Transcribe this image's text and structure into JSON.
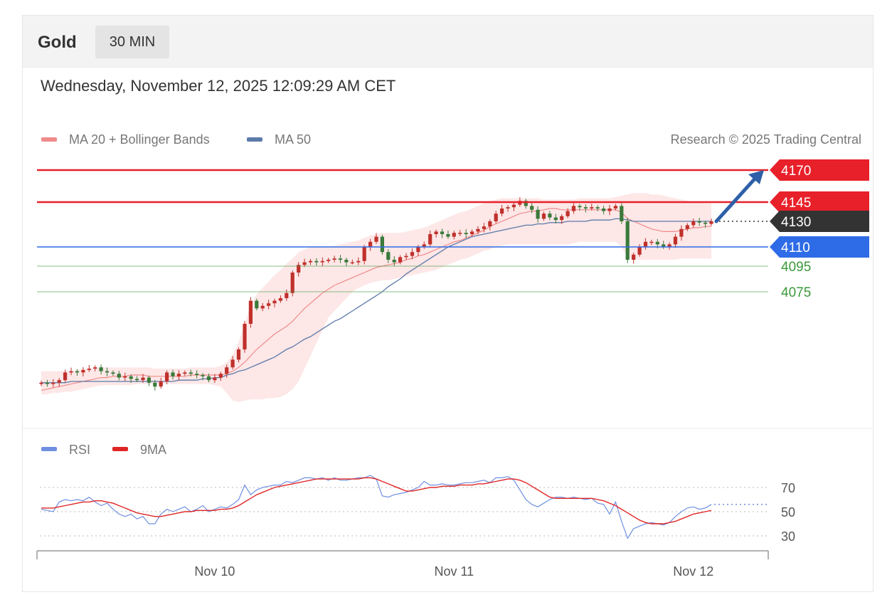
{
  "header": {
    "instrument": "Gold",
    "timeframe": "30 MIN",
    "datetime": "Wednesday, November 12, 2025 12:09:29 AM CET"
  },
  "legend": {
    "ma20_label": "MA 20 + Bollinger Bands",
    "ma50_label": "MA 50",
    "credit": "Research © 2025 Trading Central",
    "rsi_label": "RSI",
    "rsi_ma_label": "9MA"
  },
  "colors": {
    "resistance": "#e8202a",
    "pivot": "#2e6be6",
    "support": "#3a9a3a",
    "last_price": "#333333",
    "ma50": "#5b7aa8",
    "ma20": "#f08a8a",
    "bollinger_fill": "#fde3e3",
    "candle_up": "#c0302b",
    "candle_down": "#3a7a3a",
    "arrow": "#2f5fa8",
    "rsi": "#6f8fe0",
    "rsi_ma": "#e02525"
  },
  "chart_data": [
    {
      "type": "candlestick",
      "title": "",
      "ylim": [
        3985,
        4185
      ],
      "x_ticks": [
        {
          "label": "Nov 10",
          "index": 29
        },
        {
          "label": "Nov 11",
          "index": 69
        },
        {
          "label": "Nov 12",
          "index": 109
        }
      ],
      "levels": [
        {
          "value": 4170,
          "label": "4170",
          "kind": "resistance"
        },
        {
          "value": 4145,
          "label": "4145",
          "kind": "resistance"
        },
        {
          "value": 4130,
          "label": "4130",
          "kind": "last"
        },
        {
          "value": 4110,
          "label": "4110",
          "kind": "pivot"
        },
        {
          "value": 4095,
          "label": "4095",
          "kind": "support"
        },
        {
          "value": 4075,
          "label": "4075",
          "kind": "support"
        }
      ],
      "projection": {
        "from": 4130,
        "to": 4170,
        "direction": "up"
      },
      "close": [
        4004,
        4003,
        4004,
        4006,
        4012,
        4013,
        4012,
        4014,
        4015,
        4016,
        4013,
        4012,
        4011,
        4008,
        4009,
        4007,
        4006,
        4008,
        4004,
        4001,
        4005,
        4012,
        4009,
        4011,
        4012,
        4011,
        4010,
        4009,
        4006,
        4008,
        4011,
        4016,
        4022,
        4030,
        4050,
        4068,
        4062,
        4064,
        4066,
        4068,
        4070,
        4074,
        4090,
        4096,
        4098,
        4099,
        4098,
        4099,
        4100,
        4101,
        4100,
        4098,
        4098,
        4099,
        4110,
        4114,
        4118,
        4106,
        4100,
        4098,
        4102,
        4103,
        4106,
        4110,
        4112,
        4120,
        4122,
        4120,
        4118,
        4121,
        4121,
        4120,
        4122,
        4124,
        4126,
        4130,
        4136,
        4140,
        4141,
        4143,
        4146,
        4142,
        4139,
        4132,
        4136,
        4133,
        4131,
        4134,
        4138,
        4142,
        4141,
        4140,
        4141,
        4140,
        4138,
        4140,
        4142,
        4130,
        4100,
        4104,
        4110,
        4114,
        4114,
        4112,
        4110,
        4112,
        4118,
        4124,
        4127,
        4130,
        4129,
        4128,
        4130
      ],
      "ma20": [
        3998,
        3999,
        4000,
        4001,
        4002,
        4003,
        4004,
        4005,
        4006,
        4007,
        4008,
        4008,
        4009,
        4009,
        4009,
        4010,
        4010,
        4010,
        4009,
        4009,
        4009,
        4009,
        4009,
        4009,
        4009,
        4010,
        4010,
        4010,
        4010,
        4010,
        4010,
        4011,
        4013,
        4016,
        4020,
        4025,
        4030,
        4034,
        4038,
        4042,
        4045,
        4048,
        4052,
        4057,
        4062,
        4066,
        4070,
        4074,
        4077,
        4080,
        4082,
        4084,
        4086,
        4088,
        4090,
        4092,
        4094,
        4095,
        4096,
        4097,
        4098,
        4100,
        4101,
        4103,
        4104,
        4106,
        4108,
        4110,
        4112,
        4114,
        4115,
        4117,
        4119,
        4121,
        4123,
        4126,
        4128,
        4130,
        4132,
        4134,
        4136,
        4137,
        4138,
        4138,
        4139,
        4140,
        4140,
        4139,
        4139,
        4139,
        4139,
        4139,
        4139,
        4139,
        4139,
        4139,
        4139,
        4137,
        4132,
        4130,
        4128,
        4126,
        4124,
        4123,
        4122,
        4122,
        4122,
        4123,
        4124,
        4125,
        4125,
        4126,
        4126
      ],
      "bollinger_upper": [
        4013,
        4013,
        4013,
        4013,
        4013,
        4013,
        4014,
        4014,
        4015,
        4015,
        4016,
        4016,
        4016,
        4016,
        4016,
        4016,
        4016,
        4016,
        4016,
        4015,
        4015,
        4015,
        4015,
        4015,
        4015,
        4016,
        4016,
        4016,
        4016,
        4016,
        4017,
        4020,
        4026,
        4036,
        4050,
        4064,
        4073,
        4078,
        4083,
        4088,
        4092,
        4097,
        4101,
        4106,
        4108,
        4110,
        4110,
        4110,
        4110,
        4111,
        4112,
        4113,
        4114,
        4115,
        4117,
        4119,
        4120,
        4121,
        4121,
        4121,
        4121,
        4122,
        4123,
        4124,
        4125,
        4127,
        4129,
        4131,
        4133,
        4135,
        4137,
        4138,
        4140,
        4142,
        4144,
        4146,
        4147,
        4148,
        4148,
        4148,
        4148,
        4148,
        4148,
        4148,
        4147,
        4147,
        4147,
        4147,
        4147,
        4147,
        4148,
        4148,
        4148,
        4148,
        4148,
        4148,
        4149,
        4150,
        4151,
        4152,
        4152,
        4152,
        4151,
        4151,
        4150,
        4149,
        4148,
        4147,
        4146,
        4145,
        4145,
        4144,
        4144
      ],
      "bollinger_lower": [
        3995,
        3995,
        3996,
        3996,
        3997,
        3997,
        3998,
        3999,
        4000,
        4001,
        4002,
        4002,
        4002,
        4002,
        4002,
        4002,
        4003,
        4003,
        4003,
        4003,
        4003,
        4003,
        4003,
        4003,
        4003,
        4003,
        4003,
        4003,
        4003,
        4002,
        4001,
        3996,
        3990,
        3989,
        3990,
        3991,
        3991,
        3991,
        3992,
        3992,
        3993,
        3995,
        3999,
        4005,
        4015,
        4025,
        4035,
        4045,
        4055,
        4060,
        4065,
        4070,
        4075,
        4078,
        4080,
        4082,
        4083,
        4084,
        4084,
        4085,
        4086,
        4087,
        4088,
        4089,
        4090,
        4091,
        4092,
        4094,
        4096,
        4098,
        4100,
        4101,
        4103,
        4105,
        4107,
        4108,
        4110,
        4111,
        4112,
        4112,
        4112,
        4112,
        4112,
        4112,
        4112,
        4112,
        4112,
        4112,
        4112,
        4113,
        4114,
        4114,
        4114,
        4114,
        4114,
        4114,
        4114,
        4110,
        4102,
        4100,
        4100,
        4100,
        4100,
        4100,
        4100,
        4100,
        4100,
        4101,
        4101,
        4101,
        4101,
        4101,
        4101
      ],
      "ma50": [
        4004,
        4004,
        4004,
        4004,
        4004,
        4005,
        4005,
        4005,
        4005,
        4005,
        4005,
        4005,
        4005,
        4005,
        4005,
        4005,
        4005,
        4005,
        4005,
        4005,
        4005,
        4005,
        4005,
        4006,
        4006,
        4006,
        4006,
        4007,
        4007,
        4008,
        4008,
        4010,
        4011,
        4013,
        4014,
        4016,
        4018,
        4020,
        4022,
        4024,
        4027,
        4030,
        4032,
        4035,
        4038,
        4040,
        4043,
        4046,
        4049,
        4052,
        4054,
        4057,
        4060,
        4063,
        4066,
        4069,
        4072,
        4075,
        4079,
        4082,
        4085,
        4089,
        4092,
        4095,
        4098,
        4101,
        4104,
        4107,
        4110,
        4112,
        4114,
        4116,
        4118,
        4119,
        4120,
        4121,
        4122,
        4123,
        4124,
        4125,
        4126,
        4127,
        4127,
        4128,
        4128,
        4129,
        4129,
        4129,
        4130,
        4130,
        4130,
        4130,
        4131,
        4131,
        4131,
        4131,
        4132,
        4132,
        4131,
        4130,
        4130,
        4130,
        4130,
        4130,
        4130,
        4130,
        4130,
        4130,
        4130,
        4130,
        4130,
        4130,
        4130
      ]
    },
    {
      "type": "line",
      "title": "",
      "ylim": [
        22,
        80
      ],
      "y_ticks": [
        70,
        50,
        30
      ],
      "series": [
        {
          "name": "RSI",
          "values": [
            52,
            51,
            50,
            58,
            60,
            59,
            60,
            59,
            62,
            58,
            55,
            57,
            52,
            48,
            46,
            48,
            44,
            46,
            40,
            40,
            48,
            52,
            50,
            52,
            54,
            50,
            52,
            55,
            50,
            52,
            54,
            53,
            56,
            60,
            72,
            64,
            68,
            70,
            71,
            72,
            72,
            75,
            74,
            76,
            78,
            78,
            77,
            78,
            76,
            78,
            76,
            76,
            77,
            78,
            78,
            80,
            77,
            63,
            62,
            64,
            65,
            66,
            68,
            70,
            75,
            72,
            72,
            73,
            72,
            72,
            73,
            74,
            74,
            75,
            76,
            74,
            78,
            78,
            79,
            76,
            68,
            60,
            56,
            54,
            57,
            60,
            62,
            62,
            61,
            62,
            61,
            60,
            61,
            57,
            56,
            48,
            58,
            42,
            28,
            36,
            38,
            40,
            41,
            40,
            39,
            41,
            46,
            50,
            53,
            54,
            52,
            53,
            56
          ]
        },
        {
          "name": "9MA",
          "values": [
            53,
            53,
            53,
            54,
            55,
            56,
            57,
            58,
            58,
            59,
            59,
            58,
            57,
            55,
            53,
            51,
            49,
            48,
            47,
            46,
            46,
            47,
            48,
            49,
            50,
            50,
            51,
            51,
            51,
            51,
            52,
            52,
            53,
            55,
            58,
            61,
            64,
            66,
            68,
            70,
            71,
            72,
            73,
            74,
            75,
            76,
            77,
            77,
            77,
            77,
            77,
            77,
            77,
            77,
            78,
            78,
            77,
            75,
            73,
            71,
            69,
            67,
            67,
            68,
            69,
            70,
            70,
            71,
            71,
            71,
            72,
            72,
            72,
            73,
            73,
            74,
            75,
            76,
            77,
            77,
            76,
            74,
            71,
            68,
            65,
            62,
            61,
            61,
            61,
            61,
            61,
            61,
            61,
            60,
            59,
            57,
            55,
            52,
            49,
            46,
            43,
            41,
            40,
            40,
            40,
            41,
            42,
            44,
            46,
            48,
            49,
            50,
            51
          ]
        }
      ]
    }
  ]
}
